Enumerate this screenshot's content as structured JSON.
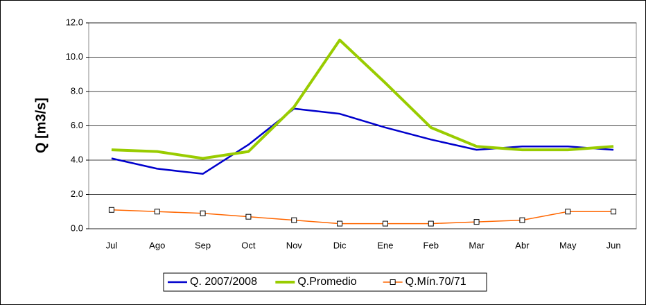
{
  "chart_data": {
    "type": "line",
    "y_label": "Q [m3/s]",
    "categories": [
      "Jul",
      "Ago",
      "Sep",
      "Oct",
      "Nov",
      "Dic",
      "Ene",
      "Feb",
      "Mar",
      "Abr",
      "May",
      "Jun"
    ],
    "series": [
      {
        "name": "Q. 2007/2008",
        "color": "#0000cc",
        "linewidth": 2.5,
        "values": [
          4.1,
          3.5,
          3.2,
          4.9,
          7.0,
          6.7,
          5.9,
          5.2,
          4.6,
          4.8,
          4.8,
          4.6
        ]
      },
      {
        "name": "Q.Promedio",
        "color": "#99cc00",
        "linewidth": 4,
        "values": [
          4.6,
          4.5,
          4.1,
          4.5,
          7.1,
          11.0,
          8.5,
          5.9,
          4.8,
          4.6,
          4.6,
          4.8
        ]
      },
      {
        "name": "Q.Mín.70/71",
        "color": "#ff6600",
        "linewidth": 1.5,
        "marker": "square",
        "values": [
          1.1,
          1.0,
          0.9,
          0.7,
          0.5,
          0.3,
          0.3,
          0.3,
          0.4,
          0.5,
          1.0,
          1.0
        ]
      }
    ],
    "ylim": [
      0,
      12
    ],
    "yticks": [
      {
        "value": 0,
        "label": "0.0"
      },
      {
        "value": 2,
        "label": "2.0"
      },
      {
        "value": 4,
        "label": "4.0"
      },
      {
        "value": 6,
        "label": "6.0"
      },
      {
        "value": 8,
        "label": "8.0"
      },
      {
        "value": 10,
        "label": "10.0"
      },
      {
        "value": 12,
        "label": "12.0"
      }
    ],
    "grid": true,
    "legend": "bottom"
  }
}
